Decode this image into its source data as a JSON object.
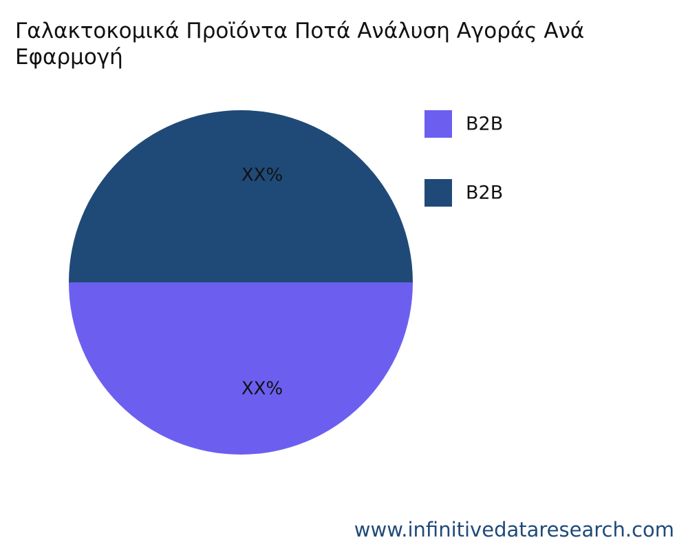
{
  "chart_data": {
    "type": "pie",
    "title": "Γαλακτοκομικά Προϊόντα Ποτά Ανάλυση Αγοράς Ανά Εφαρμογή",
    "categories": [
      "B2B",
      "B2B"
    ],
    "values": [
      50,
      50
    ],
    "value_labels": [
      "XX%",
      "XX%"
    ],
    "colors": [
      "#6c5ff0",
      "#1f4a78"
    ],
    "legend": "top-right",
    "watermark": "www.infinitivedataresearch.com"
  }
}
